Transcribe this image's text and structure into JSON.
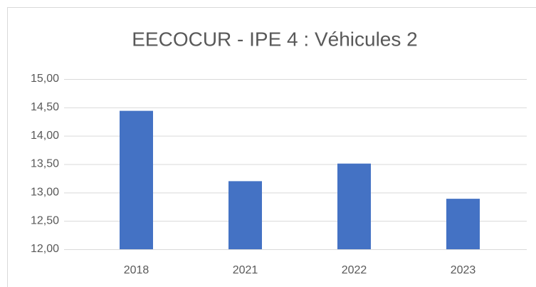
{
  "chart_data": {
    "type": "bar",
    "title": "EECOCUR - IPE 4 : Véhicules 2",
    "categories": [
      "2018",
      "2021",
      "2022",
      "2023"
    ],
    "values": [
      14.44,
      13.2,
      13.51,
      12.89
    ],
    "color": "#4472c4",
    "ylim": [
      12,
      15
    ],
    "yticks": [
      {
        "value": 12,
        "label": "12,00"
      },
      {
        "value": 12.5,
        "label": "12,50"
      },
      {
        "value": 13,
        "label": "13,00"
      },
      {
        "value": 13.5,
        "label": "13,50"
      },
      {
        "value": 14,
        "label": "14,00"
      },
      {
        "value": 14.5,
        "label": "14,50"
      },
      {
        "value": 15,
        "label": "15,00"
      }
    ],
    "grid": true
  }
}
